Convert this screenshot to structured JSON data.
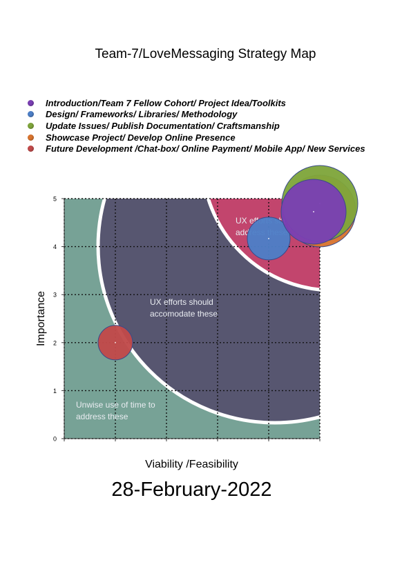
{
  "title": "Team-7/LoveMessaging  Strategy Map",
  "date": "28-February-2022",
  "chart_data": {
    "type": "scatter",
    "title": "Team-7/LoveMessaging  Strategy Map",
    "xlabel": "Viability /Feasibility",
    "ylabel": "Importance",
    "xlim": [
      0,
      5
    ],
    "ylim": [
      0,
      5
    ],
    "y_ticks": [
      "0",
      "1",
      "2",
      "3",
      "4",
      "5"
    ],
    "grid": true,
    "legend_position": "top",
    "zones": [
      {
        "name": "low",
        "text": "Unwise use of time to address these",
        "color": "#77a296"
      },
      {
        "name": "mid",
        "text": "UX efforts should accomodate these",
        "color": "#575670"
      },
      {
        "name": "high",
        "text": "UX efforts should address these",
        "color": "#c2456d"
      }
    ],
    "series": [
      {
        "name": "Introduction/Team 7 Fellow Cohort/ Project Idea/Toolkits",
        "color": "#7a3fb3",
        "x": 5,
        "y": 4.9
      },
      {
        "name": "Design/ Frameworks/ Libraries/ Methodology",
        "color": "#4d7fc7",
        "x": 4.5,
        "y": 4.6
      },
      {
        "name": "Update Issues/ Publish Documentation/ Craftsmanship",
        "color": "#7fa53b",
        "x": 5,
        "y": 5
      },
      {
        "name": "Showcase Project/ Develop Online Presence",
        "color": "#d9742f",
        "x": 5,
        "y": 4.8
      },
      {
        "name": "Future Development /Chat-box/ Online Payment/ Mobile App/ New Services",
        "color": "#c14a4a",
        "x": 1,
        "y": 2
      }
    ]
  }
}
